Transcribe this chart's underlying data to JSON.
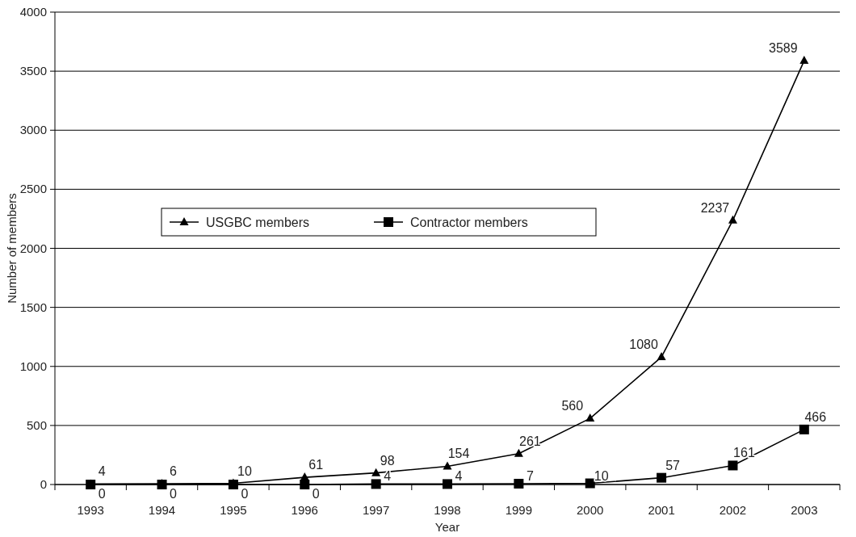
{
  "chart_data": {
    "type": "line",
    "xlabel": "Year",
    "ylabel": "Number of members",
    "categories": [
      "1993",
      "1994",
      "1995",
      "1996",
      "1997",
      "1998",
      "1999",
      "2000",
      "2001",
      "2002",
      "2003"
    ],
    "series": [
      {
        "name": "USGBC members",
        "color": "#000000",
        "marker": "triangle",
        "values": [
          4,
          6,
          10,
          61,
          98,
          154,
          261,
          560,
          1080,
          2237,
          3589
        ]
      },
      {
        "name": "Contractor members",
        "color": "#000000",
        "marker": "square",
        "values": [
          0,
          0,
          0,
          0,
          4,
          4,
          7,
          10,
          57,
          161,
          466
        ]
      }
    ],
    "ylim": [
      0,
      4000
    ],
    "yticks": [
      0,
      500,
      1000,
      1500,
      2000,
      2500,
      3000,
      3500,
      4000
    ],
    "grid": "y",
    "legend": "top left",
    "data_labels": true
  }
}
